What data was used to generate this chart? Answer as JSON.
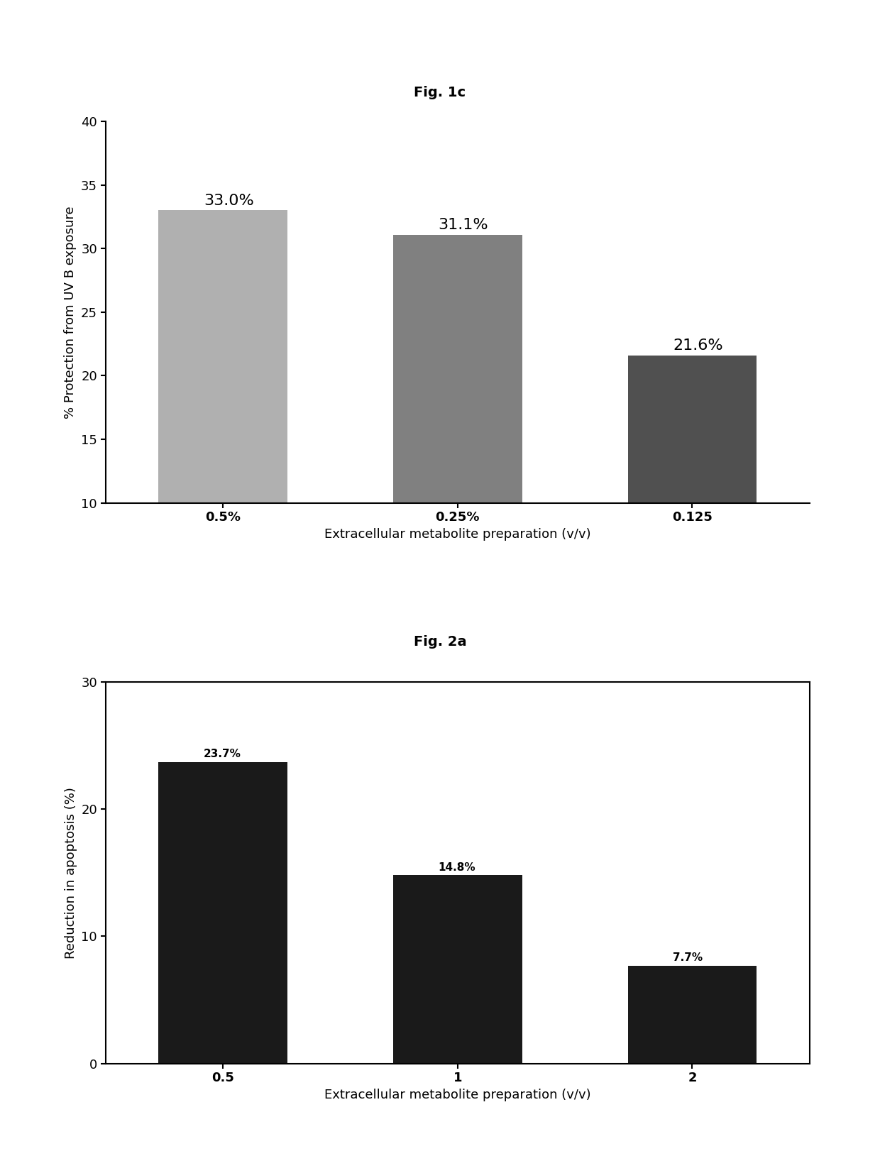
{
  "fig1c": {
    "title": "Fig. 1c",
    "categories": [
      "0.5%",
      "0.25%",
      "0.125"
    ],
    "values": [
      33.0,
      31.1,
      21.6
    ],
    "labels": [
      "33.0%",
      "31.1%",
      "21.6%"
    ],
    "bar_colors": [
      "#b0b0b0",
      "#808080",
      "#505050"
    ],
    "ylabel": "% Protection from UV B exposure",
    "xlabel": "Extracellular metabolite preparation (v/v)",
    "ylim": [
      10,
      40
    ],
    "yticks": [
      10,
      15,
      20,
      25,
      30,
      35,
      40
    ],
    "label_fontsize": 13,
    "tick_fontsize": 13,
    "title_fontsize": 14,
    "bar_label_fontsize": 16
  },
  "fig2a": {
    "title": "Fig. 2a",
    "categories": [
      "0.5",
      "1",
      "2"
    ],
    "values": [
      23.7,
      14.8,
      7.7
    ],
    "labels": [
      "23.7%",
      "14.8%",
      "7.7%"
    ],
    "bar_colors": [
      "#1a1a1a",
      "#1a1a1a",
      "#1a1a1a"
    ],
    "ylabel": "Reduction in apoptosis (%)",
    "xlabel": "Extracellular metabolite preparation (v/v)",
    "ylim": [
      0,
      30
    ],
    "yticks": [
      0,
      10,
      20,
      30
    ],
    "label_fontsize": 13,
    "tick_fontsize": 13,
    "title_fontsize": 14,
    "bar_label_fontsize": 11
  },
  "figure_bg": "#ffffff",
  "figure_width": 12.4,
  "figure_height": 16.29
}
